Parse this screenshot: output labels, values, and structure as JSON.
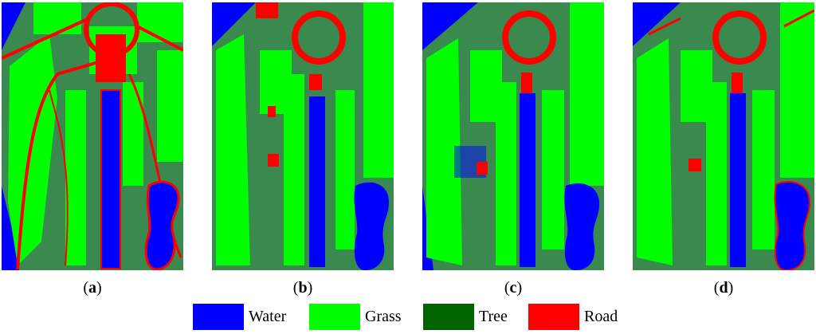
{
  "panels": [
    {
      "id": "a",
      "caption_open": "(",
      "caption_letter": "a",
      "caption_close": ")"
    },
    {
      "id": "b",
      "caption_open": "(",
      "caption_letter": "b",
      "caption_close": ")"
    },
    {
      "id": "c",
      "caption_open": "(",
      "caption_letter": "c",
      "caption_close": ")"
    },
    {
      "id": "d",
      "caption_open": "(",
      "caption_letter": "d",
      "caption_close": ")"
    }
  ],
  "legend": [
    {
      "label": "Water",
      "color": "#0000ff"
    },
    {
      "label": "Grass",
      "color": "#00ff00"
    },
    {
      "label": "Tree",
      "color": "#006400"
    },
    {
      "label": "Road",
      "color": "#ff0000"
    }
  ],
  "colors": {
    "water": "#0000ff",
    "grass": "#00ff00",
    "tree_map": "#3a8a50",
    "road": "#ff0000",
    "background": "#ffffff"
  }
}
